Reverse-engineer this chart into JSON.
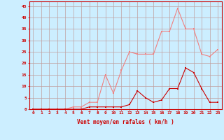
{
  "x": [
    0,
    1,
    2,
    3,
    4,
    5,
    6,
    7,
    8,
    9,
    10,
    11,
    12,
    13,
    14,
    15,
    16,
    17,
    18,
    19,
    20,
    21,
    22,
    23
  ],
  "y_rafales": [
    0,
    0,
    0,
    0,
    0,
    1,
    1,
    3,
    3,
    15,
    7,
    17,
    25,
    24,
    24,
    24,
    34,
    34,
    44,
    35,
    35,
    24,
    23,
    26
  ],
  "y_moyen": [
    0,
    0,
    0,
    0,
    0,
    0,
    0,
    1,
    1,
    1,
    1,
    1,
    2,
    8,
    5,
    3,
    4,
    9,
    9,
    18,
    16,
    9,
    3,
    3
  ],
  "color_rafales": "#f08080",
  "color_moyen": "#cc0000",
  "bg_color": "#cceeff",
  "grid_color": "#c0a0a0",
  "xlabel": "Vent moyen/en rafales ( km/h )",
  "ylabel_ticks": [
    0,
    5,
    10,
    15,
    20,
    25,
    30,
    35,
    40,
    45
  ],
  "xlim": [
    -0.5,
    23.5
  ],
  "ylim": [
    0,
    47
  ]
}
